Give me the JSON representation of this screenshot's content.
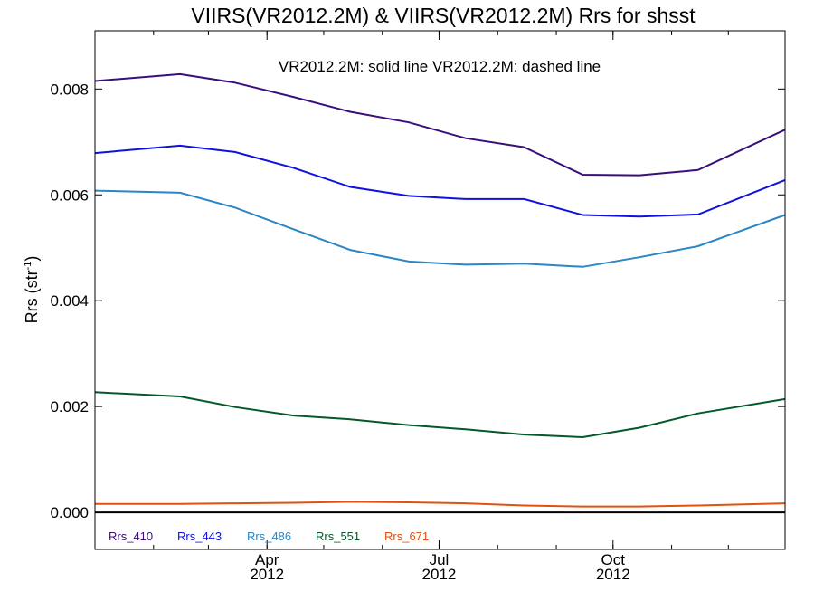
{
  "chart_data": {
    "type": "line",
    "title": "VIIRS(VR2012.2M) & VIIRS(VR2012.2M)  Rrs for shsst",
    "annotation": "VR2012.2M: solid line   VR2012.2M: dashed line",
    "ylabel": "Rrs (str",
    "ylabel_sup": "-1",
    "ylabel_close": ")",
    "ylim": [
      -0.0007,
      0.0091
    ],
    "xlim": [
      "2012-01-01",
      "2012-12-31"
    ],
    "xticks": [
      {
        "date": "2012-04-01",
        "label": "Apr",
        "year": "2012"
      },
      {
        "date": "2012-07-01",
        "label": "Jul",
        "year": "2012"
      },
      {
        "date": "2012-10-01",
        "label": "Oct",
        "year": "2012"
      }
    ],
    "yticks": [
      "0.000",
      "0.002",
      "0.004",
      "0.006",
      "0.008"
    ],
    "x": [
      "2012-01-01",
      "2012-02-15",
      "2012-03-15",
      "2012-04-15",
      "2012-05-15",
      "2012-06-15",
      "2012-07-15",
      "2012-08-15",
      "2012-09-15",
      "2012-10-15",
      "2012-11-15",
      "2012-12-31"
    ],
    "series": [
      {
        "name": "Rrs_410",
        "color": "#3b0f7a",
        "values": [
          0.00815,
          0.00828,
          0.00812,
          0.00785,
          0.00757,
          0.00737,
          0.00707,
          0.0069,
          0.00638,
          0.00637,
          0.00647,
          0.00723
        ]
      },
      {
        "name": "Rrs_443",
        "color": "#1010e0",
        "values": [
          0.00679,
          0.00693,
          0.00681,
          0.00651,
          0.00615,
          0.00598,
          0.00592,
          0.00592,
          0.00562,
          0.00559,
          0.00563,
          0.00628
        ]
      },
      {
        "name": "Rrs_486",
        "color": "#2a86c4",
        "values": [
          0.00608,
          0.00604,
          0.00576,
          0.00535,
          0.00496,
          0.00474,
          0.00468,
          0.0047,
          0.00464,
          0.00482,
          0.00503,
          0.00562
        ]
      },
      {
        "name": "Rrs_551",
        "color": "#06582a",
        "values": [
          0.00227,
          0.00219,
          0.00199,
          0.00183,
          0.00176,
          0.00165,
          0.00157,
          0.00147,
          0.00142,
          0.0016,
          0.00187,
          0.00214
        ]
      },
      {
        "name": "Rrs_671",
        "color": "#e0520f",
        "values": [
          0.00016,
          0.00016,
          0.00017,
          0.00018,
          0.0002,
          0.00019,
          0.00017,
          0.00013,
          0.00011,
          0.00011,
          0.00013,
          0.00017
        ]
      }
    ],
    "grid": false,
    "legend_position": "bottom-left"
  }
}
